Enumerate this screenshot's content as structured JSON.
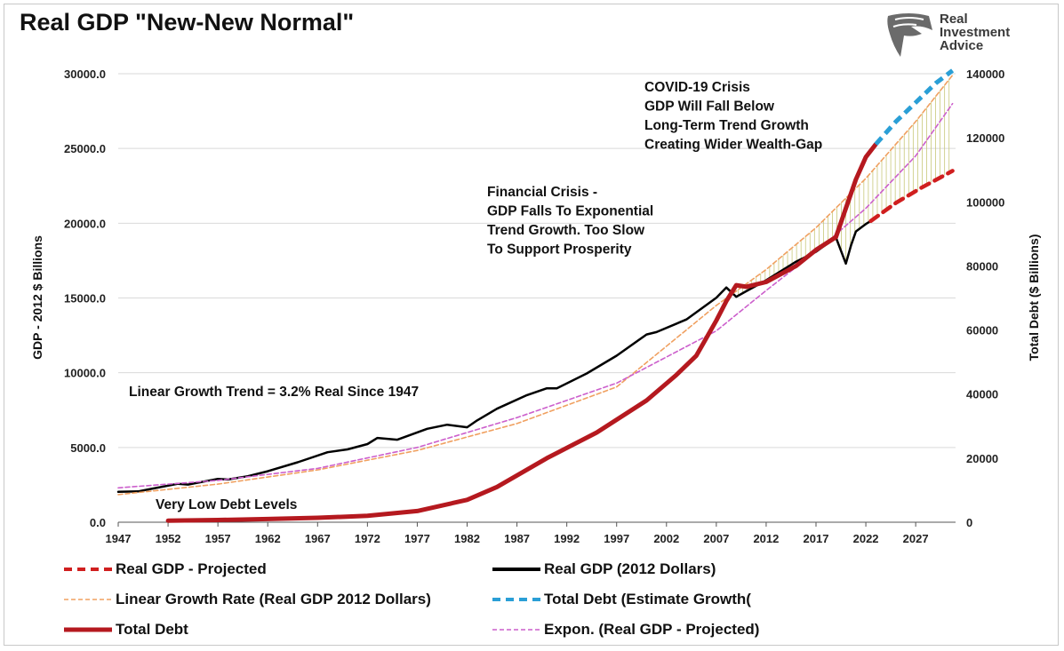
{
  "title": "Real GDP \"New-New Normal\"",
  "logo": {
    "line1": "Real",
    "line2": "Investment",
    "line3": "Advice",
    "icon": "eagle-head-icon"
  },
  "chart_data": {
    "type": "line",
    "title": "Real GDP \"New-New Normal\"",
    "xlabel": "",
    "ylabel_left": "GDP - 2012 $ Billions",
    "ylabel_right": "Total Debt ($ Billions)",
    "xlim": [
      1947,
      2031
    ],
    "ylim_left": [
      0,
      30000
    ],
    "ylim_right": [
      0,
      140000
    ],
    "x_ticks": [
      "1947",
      "1952",
      "1957",
      "1962",
      "1967",
      "1972",
      "1977",
      "1982",
      "1987",
      "1992",
      "1997",
      "2002",
      "2007",
      "2012",
      "2017",
      "2022",
      "2027"
    ],
    "y_left_ticks": [
      "0.0",
      "5000.0",
      "10000.0",
      "15000.0",
      "20000.0",
      "25000.0",
      "30000.0"
    ],
    "y_right_ticks": [
      "0",
      "20000",
      "40000",
      "60000",
      "80000",
      "100000",
      "120000",
      "140000"
    ],
    "series": [
      {
        "name": "Real GDP (2012 Dollars)",
        "axis": "left",
        "color": "#000000",
        "style": "solid",
        "x": [
          1947,
          1949,
          1950,
          1953,
          1954,
          1957,
          1958,
          1960,
          1962,
          1965,
          1968,
          1970,
          1972,
          1973,
          1975,
          1978,
          1980,
          1982,
          1983,
          1985,
          1988,
          1990,
          1991,
          1994,
          1997,
          2000,
          2001,
          2004,
          2007,
          2008,
          2009,
          2010,
          2012,
          2015,
          2017,
          2019,
          2020,
          2020.5,
          2021,
          2022,
          2022.5
        ],
        "values": [
          2030,
          2060,
          2190,
          2570,
          2520,
          2900,
          2860,
          3080,
          3410,
          4010,
          4680,
          4870,
          5230,
          5640,
          5520,
          6250,
          6520,
          6350,
          6810,
          7590,
          8500,
          8960,
          8950,
          9950,
          11140,
          12560,
          12720,
          13560,
          15020,
          15700,
          15080,
          15450,
          16180,
          17430,
          18090,
          19050,
          17300,
          18500,
          19450,
          19950,
          20150
        ]
      },
      {
        "name": "Real GDP - Projected",
        "axis": "left",
        "color": "#d01f1f",
        "style": "dashed",
        "x": [
          2022.5,
          2025,
          2027.5,
          2030.7
        ],
        "values": [
          20150,
          21350,
          22350,
          23500
        ]
      },
      {
        "name": "Linear Growth Rate (Real GDP 2012 Dollars)",
        "axis": "left",
        "color": "#f0a060",
        "style": "dashed-thin",
        "x": [
          1947,
          1957,
          1967,
          1977,
          1987,
          1997,
          2007,
          2012,
          2017,
          2022,
          2027,
          2030.7
        ],
        "values": [
          1850,
          2550,
          3500,
          4800,
          6600,
          9050,
          14500,
          16900,
          19700,
          23000,
          26800,
          29900
        ]
      },
      {
        "name": "Expon. (Real GDP - Projected)",
        "axis": "left",
        "color": "#cc5fcc",
        "style": "dashed-thin",
        "x": [
          1947,
          1957,
          1967,
          1977,
          1987,
          1997,
          2007,
          2012,
          2017,
          2022,
          2027,
          2030.7
        ],
        "values": [
          2300,
          2800,
          3600,
          5000,
          7000,
          9300,
          12800,
          15500,
          18100,
          21000,
          24500,
          28000
        ]
      },
      {
        "name": "Total Debt",
        "axis": "right",
        "color": "#b5191f",
        "style": "solid-thick",
        "x": [
          1952,
          1957,
          1962,
          1967,
          1972,
          1977,
          1982,
          1985,
          1990,
          1995,
          2000,
          2003,
          2005,
          2007,
          2008,
          2009,
          2010,
          2012,
          2015,
          2017,
          2019,
          2020,
          2021,
          2022,
          2023
        ],
        "values": [
          500,
          700,
          1000,
          1400,
          2000,
          3500,
          7000,
          11000,
          20000,
          28000,
          38000,
          46000,
          52000,
          63000,
          69000,
          74000,
          73500,
          75000,
          80000,
          85000,
          89000,
          98000,
          107000,
          114000,
          118000
        ]
      },
      {
        "name": "Total Debt (Estimate Growth(",
        "axis": "right",
        "color": "#2a9fd6",
        "style": "dashed-thick",
        "x": [
          2023,
          2025,
          2027,
          2029,
          2030.7
        ],
        "values": [
          118000,
          125000,
          131000,
          137000,
          141000
        ]
      }
    ],
    "annotations": [
      {
        "text": "COVID-19 Crisis",
        "group": "covid"
      },
      {
        "text": "GDP Will Fall Below",
        "group": "covid"
      },
      {
        "text": "Long-Term Trend Growth",
        "group": "covid"
      },
      {
        "text": "Creating Wider Wealth-Gap",
        "group": "covid"
      },
      {
        "text": "Financial Crisis -",
        "group": "financial"
      },
      {
        "text": "GDP Falls To Exponential",
        "group": "financial"
      },
      {
        "text": "Trend Growth. Too Slow",
        "group": "financial"
      },
      {
        "text": "To Support Prosperity",
        "group": "financial"
      },
      {
        "text": "Linear Growth Trend = 3.2% Real Since 1947",
        "group": "linear"
      },
      {
        "text": "Very Low Debt Levels",
        "group": "debt"
      }
    ]
  },
  "legend": [
    {
      "label": "Real GDP - Projected",
      "color": "#d01f1f",
      "style": "dashed"
    },
    {
      "label": "Real GDP (2012 Dollars)",
      "color": "#000000",
      "style": "solid"
    },
    {
      "label": "Linear Growth Rate (Real GDP 2012 Dollars)",
      "color": "#f0a060",
      "style": "dashed-thin"
    },
    {
      "label": "Total Debt (Estimate Growth(",
      "color": "#2a9fd6",
      "style": "dashed"
    },
    {
      "label": "Total Debt",
      "color": "#b5191f",
      "style": "solid-thick"
    },
    {
      "label": "Expon. (Real GDP - Projected)",
      "color": "#cc5fcc",
      "style": "dashed-thin"
    }
  ]
}
